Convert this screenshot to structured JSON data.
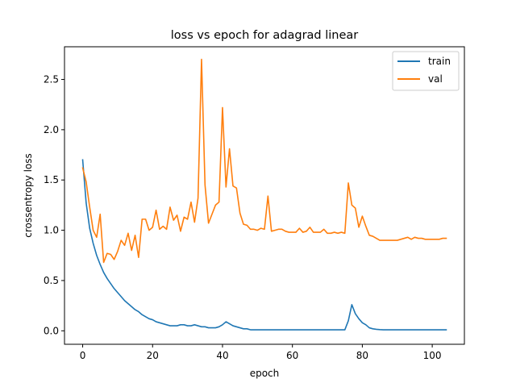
{
  "chart_data": {
    "type": "line",
    "title": "loss vs epoch for adagrad linear",
    "xlabel": "epoch",
    "ylabel": "crossentropy loss",
    "xlim": [
      -5.2,
      109.2
    ],
    "ylim": [
      -0.134,
      2.825
    ],
    "xticks": [
      0,
      20,
      40,
      60,
      80,
      100
    ],
    "yticks": [
      0.0,
      0.5,
      1.0,
      1.5,
      2.0,
      2.5
    ],
    "ytick_labels": [
      "0.0",
      "0.5",
      "1.0",
      "1.5",
      "2.0",
      "2.5"
    ],
    "grid": false,
    "legend_position": "upper right",
    "x": [
      0,
      1,
      2,
      3,
      4,
      5,
      6,
      7,
      8,
      9,
      10,
      11,
      12,
      13,
      14,
      15,
      16,
      17,
      18,
      19,
      20,
      21,
      22,
      23,
      24,
      25,
      26,
      27,
      28,
      29,
      30,
      31,
      32,
      33,
      34,
      35,
      36,
      37,
      38,
      39,
      40,
      41,
      42,
      43,
      44,
      45,
      46,
      47,
      48,
      49,
      50,
      51,
      52,
      53,
      54,
      55,
      56,
      57,
      58,
      59,
      60,
      61,
      62,
      63,
      64,
      65,
      66,
      67,
      68,
      69,
      70,
      71,
      72,
      73,
      74,
      75,
      76,
      77,
      78,
      79,
      80,
      81,
      82,
      83,
      84,
      85,
      86,
      87,
      88,
      89,
      90,
      91,
      92,
      93,
      94,
      95,
      96,
      97,
      98,
      99,
      100,
      101,
      102,
      103,
      104
    ],
    "series": [
      {
        "name": "train",
        "color": "#1f77b4",
        "values": [
          1.7,
          1.27,
          1.02,
          0.87,
          0.75,
          0.66,
          0.58,
          0.52,
          0.47,
          0.42,
          0.38,
          0.34,
          0.3,
          0.27,
          0.24,
          0.21,
          0.19,
          0.16,
          0.14,
          0.12,
          0.11,
          0.09,
          0.08,
          0.07,
          0.06,
          0.05,
          0.05,
          0.05,
          0.06,
          0.06,
          0.05,
          0.05,
          0.06,
          0.05,
          0.04,
          0.04,
          0.03,
          0.03,
          0.03,
          0.04,
          0.06,
          0.09,
          0.07,
          0.05,
          0.04,
          0.03,
          0.02,
          0.02,
          0.01,
          0.01,
          0.01,
          0.01,
          0.01,
          0.01,
          0.01,
          0.01,
          0.01,
          0.01,
          0.01,
          0.01,
          0.01,
          0.01,
          0.01,
          0.01,
          0.01,
          0.01,
          0.01,
          0.01,
          0.01,
          0.01,
          0.01,
          0.01,
          0.01,
          0.01,
          0.01,
          0.01,
          0.1,
          0.26,
          0.17,
          0.12,
          0.08,
          0.06,
          0.03,
          0.02,
          0.015,
          0.012,
          0.01,
          0.01,
          0.01,
          0.01,
          0.01,
          0.01,
          0.01,
          0.01,
          0.01,
          0.01,
          0.01,
          0.01,
          0.01,
          0.01,
          0.01,
          0.01,
          0.01,
          0.01,
          0.01
        ]
      },
      {
        "name": "val",
        "color": "#ff7f0e",
        "values": [
          1.62,
          1.48,
          1.23,
          1.0,
          0.93,
          1.16,
          0.68,
          0.77,
          0.76,
          0.71,
          0.79,
          0.9,
          0.85,
          0.97,
          0.8,
          0.95,
          0.73,
          1.11,
          1.11,
          1.0,
          1.03,
          1.2,
          1.01,
          1.04,
          1.01,
          1.23,
          1.1,
          1.15,
          0.99,
          1.13,
          1.11,
          1.28,
          1.08,
          1.32,
          2.7,
          1.45,
          1.07,
          1.16,
          1.25,
          1.28,
          2.22,
          1.43,
          1.81,
          1.44,
          1.42,
          1.17,
          1.06,
          1.05,
          1.01,
          1.01,
          1.0,
          1.02,
          1.01,
          1.34,
          0.99,
          1.0,
          1.01,
          1.01,
          0.99,
          0.98,
          0.98,
          0.98,
          1.02,
          0.98,
          0.99,
          1.03,
          0.98,
          0.98,
          0.98,
          1.01,
          0.97,
          0.97,
          0.98,
          0.97,
          0.98,
          0.97,
          1.47,
          1.25,
          1.22,
          1.03,
          1.14,
          1.04,
          0.95,
          0.94,
          0.92,
          0.9,
          0.9,
          0.9,
          0.9,
          0.9,
          0.9,
          0.91,
          0.92,
          0.93,
          0.91,
          0.93,
          0.92,
          0.92,
          0.91,
          0.91,
          0.91,
          0.91,
          0.91,
          0.92,
          0.92
        ]
      }
    ]
  }
}
